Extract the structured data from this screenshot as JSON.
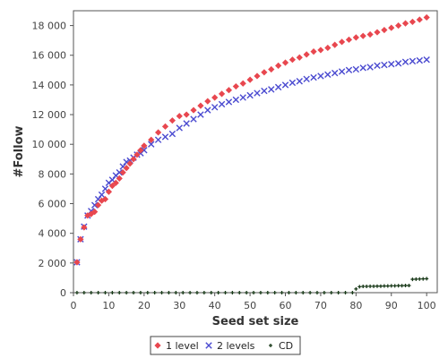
{
  "chart_data": {
    "type": "scatter",
    "title": "",
    "xlabel": "Seed set size",
    "ylabel": "#Follow",
    "xlim": [
      0,
      103
    ],
    "ylim": [
      0,
      19000
    ],
    "xticks": [
      0,
      10,
      20,
      30,
      40,
      50,
      60,
      70,
      80,
      90,
      100
    ],
    "xtick_labels": [
      "0",
      "10",
      "20",
      "30",
      "40",
      "50",
      "60",
      "70",
      "80",
      "90",
      "100"
    ],
    "yticks": [
      0,
      2000,
      4000,
      6000,
      8000,
      10000,
      12000,
      14000,
      16000,
      18000
    ],
    "ytick_labels": [
      "0",
      "2 000",
      "4 000",
      "6 000",
      "8 000",
      "10 000",
      "12 000",
      "14 000",
      "16 000",
      "18 000"
    ],
    "grid": false,
    "legend_position": "bottom-center",
    "series": [
      {
        "name": "1 level",
        "marker": "diamond",
        "color": "#e8474f",
        "points": [
          [
            1,
            2050
          ],
          [
            2,
            3600
          ],
          [
            3,
            4400
          ],
          [
            4,
            5200
          ],
          [
            5,
            5300
          ],
          [
            6,
            5450
          ],
          [
            7,
            5900
          ],
          [
            8,
            6200
          ],
          [
            9,
            6300
          ],
          [
            10,
            6800
          ],
          [
            11,
            7200
          ],
          [
            12,
            7400
          ],
          [
            13,
            7700
          ],
          [
            14,
            8100
          ],
          [
            15,
            8400
          ],
          [
            16,
            8700
          ],
          [
            17,
            9000
          ],
          [
            18,
            9300
          ],
          [
            19,
            9600
          ],
          [
            20,
            9900
          ],
          [
            22,
            10300
          ],
          [
            24,
            10800
          ],
          [
            26,
            11200
          ],
          [
            28,
            11600
          ],
          [
            30,
            11900
          ],
          [
            32,
            12000
          ],
          [
            34,
            12300
          ],
          [
            36,
            12600
          ],
          [
            38,
            12900
          ],
          [
            40,
            13150
          ],
          [
            42,
            13400
          ],
          [
            44,
            13650
          ],
          [
            46,
            13900
          ],
          [
            48,
            14100
          ],
          [
            50,
            14350
          ],
          [
            52,
            14600
          ],
          [
            54,
            14850
          ],
          [
            56,
            15050
          ],
          [
            58,
            15300
          ],
          [
            60,
            15500
          ],
          [
            62,
            15700
          ],
          [
            64,
            15850
          ],
          [
            66,
            16050
          ],
          [
            68,
            16250
          ],
          [
            70,
            16350
          ],
          [
            72,
            16500
          ],
          [
            74,
            16700
          ],
          [
            76,
            16900
          ],
          [
            78,
            17050
          ],
          [
            80,
            17200
          ],
          [
            82,
            17300
          ],
          [
            84,
            17400
          ],
          [
            86,
            17550
          ],
          [
            88,
            17700
          ],
          [
            90,
            17850
          ],
          [
            92,
            18000
          ],
          [
            94,
            18150
          ],
          [
            96,
            18250
          ],
          [
            98,
            18400
          ],
          [
            100,
            18550
          ]
        ]
      },
      {
        "name": "2 levels",
        "marker": "x",
        "color": "#4a4ad0",
        "points": [
          [
            1,
            2050
          ],
          [
            2,
            3600
          ],
          [
            3,
            4450
          ],
          [
            4,
            5200
          ],
          [
            5,
            5500
          ],
          [
            6,
            5900
          ],
          [
            7,
            6300
          ],
          [
            8,
            6600
          ],
          [
            9,
            7000
          ],
          [
            10,
            7400
          ],
          [
            11,
            7600
          ],
          [
            12,
            7900
          ],
          [
            13,
            8100
          ],
          [
            14,
            8500
          ],
          [
            15,
            8800
          ],
          [
            16,
            8900
          ],
          [
            17,
            9100
          ],
          [
            18,
            9300
          ],
          [
            19,
            9400
          ],
          [
            20,
            9600
          ],
          [
            22,
            10000
          ],
          [
            24,
            10300
          ],
          [
            26,
            10500
          ],
          [
            28,
            10700
          ],
          [
            30,
            11100
          ],
          [
            32,
            11400
          ],
          [
            34,
            11700
          ],
          [
            36,
            12000
          ],
          [
            38,
            12300
          ],
          [
            40,
            12500
          ],
          [
            42,
            12700
          ],
          [
            44,
            12850
          ],
          [
            46,
            13000
          ],
          [
            48,
            13150
          ],
          [
            50,
            13300
          ],
          [
            52,
            13450
          ],
          [
            54,
            13600
          ],
          [
            56,
            13700
          ],
          [
            58,
            13850
          ],
          [
            60,
            14000
          ],
          [
            62,
            14150
          ],
          [
            64,
            14250
          ],
          [
            66,
            14400
          ],
          [
            68,
            14500
          ],
          [
            70,
            14600
          ],
          [
            72,
            14700
          ],
          [
            74,
            14800
          ],
          [
            76,
            14900
          ],
          [
            78,
            15000
          ],
          [
            80,
            15050
          ],
          [
            82,
            15150
          ],
          [
            84,
            15200
          ],
          [
            86,
            15300
          ],
          [
            88,
            15350
          ],
          [
            90,
            15400
          ],
          [
            92,
            15450
          ],
          [
            94,
            15550
          ],
          [
            96,
            15600
          ],
          [
            98,
            15650
          ],
          [
            100,
            15700
          ]
        ]
      },
      {
        "name": "CD",
        "marker": "dot",
        "color": "#1a3a1a",
        "points": [
          [
            1,
            0
          ],
          [
            3,
            0
          ],
          [
            5,
            0
          ],
          [
            7,
            0
          ],
          [
            9,
            0
          ],
          [
            11,
            0
          ],
          [
            13,
            0
          ],
          [
            15,
            0
          ],
          [
            17,
            0
          ],
          [
            19,
            0
          ],
          [
            21,
            0
          ],
          [
            23,
            0
          ],
          [
            25,
            0
          ],
          [
            27,
            0
          ],
          [
            29,
            0
          ],
          [
            31,
            0
          ],
          [
            33,
            0
          ],
          [
            35,
            0
          ],
          [
            37,
            0
          ],
          [
            39,
            0
          ],
          [
            41,
            0
          ],
          [
            43,
            0
          ],
          [
            45,
            0
          ],
          [
            47,
            0
          ],
          [
            49,
            0
          ],
          [
            51,
            0
          ],
          [
            53,
            0
          ],
          [
            55,
            0
          ],
          [
            57,
            0
          ],
          [
            59,
            0
          ],
          [
            61,
            0
          ],
          [
            63,
            0
          ],
          [
            65,
            0
          ],
          [
            67,
            0
          ],
          [
            69,
            0
          ],
          [
            71,
            0
          ],
          [
            73,
            0
          ],
          [
            75,
            0
          ],
          [
            77,
            0
          ],
          [
            79,
            0
          ],
          [
            80,
            250
          ],
          [
            81,
            400
          ],
          [
            82,
            420
          ],
          [
            83,
            420
          ],
          [
            84,
            430
          ],
          [
            85,
            430
          ],
          [
            86,
            440
          ],
          [
            87,
            440
          ],
          [
            88,
            450
          ],
          [
            89,
            450
          ],
          [
            90,
            460
          ],
          [
            91,
            460
          ],
          [
            92,
            470
          ],
          [
            93,
            470
          ],
          [
            94,
            480
          ],
          [
            95,
            480
          ],
          [
            96,
            900
          ],
          [
            97,
            910
          ],
          [
            98,
            920
          ],
          [
            99,
            930
          ],
          [
            100,
            940
          ]
        ]
      }
    ]
  }
}
